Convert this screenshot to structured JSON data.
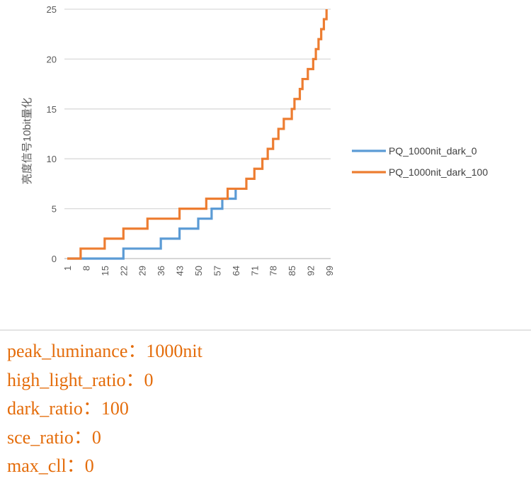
{
  "chart_data": {
    "type": "line",
    "title": "",
    "xlabel": "",
    "ylabel": "亮度信号10bit量化",
    "xlim": [
      1,
      99
    ],
    "ylim": [
      0,
      25
    ],
    "y_ticks": [
      "0",
      "5",
      "10",
      "15",
      "20",
      "25"
    ],
    "x_ticks": [
      "1",
      "8",
      "15",
      "22",
      "29",
      "36",
      "43",
      "50",
      "57",
      "64",
      "71",
      "78",
      "85",
      "92",
      "99"
    ],
    "grid": true,
    "legend_position": "right",
    "series": [
      {
        "name": "PQ_1000nit_dark_0",
        "color": "#5b9bd5",
        "points": [
          [
            1,
            0
          ],
          [
            22,
            0
          ],
          [
            22,
            1
          ],
          [
            36,
            1
          ],
          [
            36,
            2
          ],
          [
            43,
            2
          ],
          [
            43,
            3
          ],
          [
            50,
            3
          ],
          [
            50,
            4
          ],
          [
            55,
            4
          ],
          [
            55,
            5
          ],
          [
            59,
            5
          ],
          [
            59,
            6
          ],
          [
            64,
            6
          ],
          [
            64,
            7
          ]
        ]
      },
      {
        "name": "PQ_1000nit_dark_100",
        "color": "#ed7d31",
        "points": [
          [
            1,
            0
          ],
          [
            6,
            0
          ],
          [
            6,
            1
          ],
          [
            15,
            1
          ],
          [
            15,
            2
          ],
          [
            22,
            2
          ],
          [
            22,
            3
          ],
          [
            31,
            3
          ],
          [
            31,
            4
          ],
          [
            43,
            4
          ],
          [
            43,
            5
          ],
          [
            53,
            5
          ],
          [
            53,
            6
          ],
          [
            61,
            6
          ],
          [
            61,
            7
          ],
          [
            68,
            7
          ],
          [
            68,
            8
          ],
          [
            71,
            8
          ],
          [
            71,
            9
          ],
          [
            74,
            9
          ],
          [
            74,
            10
          ],
          [
            76,
            10
          ],
          [
            76,
            11
          ],
          [
            78,
            11
          ],
          [
            78,
            12
          ],
          [
            80,
            12
          ],
          [
            80,
            13
          ],
          [
            82,
            13
          ],
          [
            82,
            14
          ],
          [
            85,
            14
          ],
          [
            85,
            15
          ],
          [
            86,
            15
          ],
          [
            86,
            16
          ],
          [
            88,
            16
          ],
          [
            88,
            17
          ],
          [
            89,
            17
          ],
          [
            89,
            18
          ],
          [
            91,
            18
          ],
          [
            91,
            19
          ],
          [
            93,
            19
          ],
          [
            93,
            20
          ],
          [
            94,
            20
          ],
          [
            94,
            21
          ],
          [
            95,
            21
          ],
          [
            95,
            22
          ],
          [
            96,
            22
          ],
          [
            96,
            23
          ],
          [
            97,
            23
          ],
          [
            97,
            24
          ],
          [
            98,
            24
          ],
          [
            98,
            25
          ]
        ]
      }
    ]
  },
  "params": {
    "peak_luminance": "peak_luminance：1000nit",
    "high_light_ratio": "high_light_ratio：0",
    "dark_ratio": "dark_ratio：100",
    "sce_ratio": "sce_ratio：0",
    "max_cll": "max_cll：0"
  }
}
